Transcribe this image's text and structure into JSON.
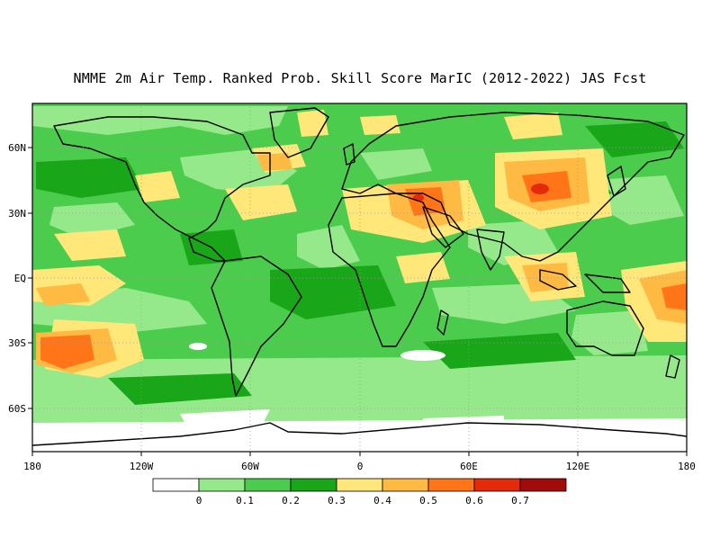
{
  "title": "NMME 2m Air Temp. Ranked Prob. Skill Score MarIC (2012-2022) JAS Fcst",
  "lat_labels": [
    "60N",
    "30N",
    "EQ",
    "30S",
    "60S"
  ],
  "lat_values": [
    60,
    30,
    0,
    -30,
    -60
  ],
  "lon_labels": [
    "180",
    "120W",
    "60W",
    "0",
    "60E",
    "120E",
    "180"
  ],
  "lon_values": [
    -180,
    -120,
    -60,
    0,
    60,
    120,
    180
  ],
  "extent": {
    "lon": [
      -180,
      180
    ],
    "lat": [
      -80,
      80
    ]
  },
  "colorbar": {
    "labels": [
      "0",
      "0.1",
      "0.2",
      "0.3",
      "0.4",
      "0.5",
      "0.6",
      "0.7"
    ],
    "colors": [
      "#ffffff",
      "#96e98a",
      "#4ccc4c",
      "#19a619",
      "#ffe77a",
      "#ffba43",
      "#ff7518",
      "#e32a0a",
      "#a30a0a"
    ]
  },
  "map_colors": {
    "ocean_base": "#4ccc4c",
    "land_outline": "#000000",
    "grid_line": "#9a9a9a"
  }
}
